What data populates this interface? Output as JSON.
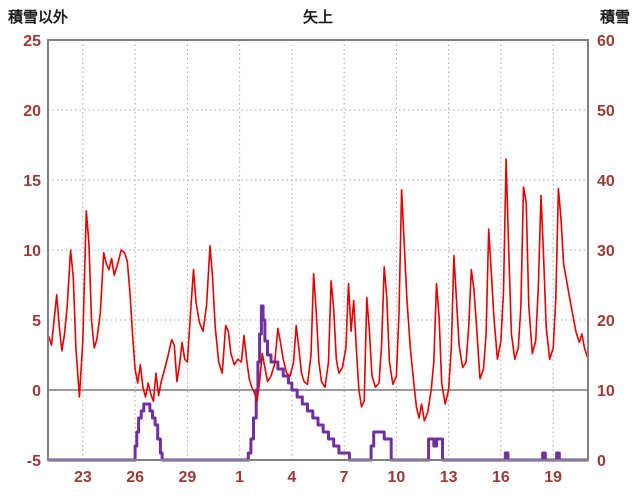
{
  "chart_data": {
    "type": "line",
    "title": "矢上",
    "grid": true,
    "legend": "none",
    "colors": {
      "red_series": "#e60000",
      "purple_series": "#7030a0",
      "tick_label": "#9c3a38",
      "grid_line": "#a6a6a6",
      "border": "#808080",
      "zero_line": "#7a7a7a",
      "title_text": "#1a1a1a"
    },
    "left_axis": {
      "title": "積雪以外",
      "min": -5,
      "max": 25,
      "ticks": [
        25,
        20,
        15,
        10,
        5,
        0,
        -5
      ]
    },
    "right_axis": {
      "title": "積雪",
      "min": 0,
      "max": 60,
      "ticks": [
        60,
        50,
        40,
        30,
        20,
        10,
        0
      ]
    },
    "x_axis": {
      "domain": [
        21,
        52
      ],
      "tick_days": [
        23,
        26,
        29,
        32,
        35,
        38,
        41,
        44,
        47,
        50
      ],
      "tick_labels": [
        "23",
        "26",
        "29",
        "1",
        "4",
        "7",
        "10",
        "13",
        "16",
        "19"
      ]
    },
    "series": [
      {
        "id": "purple-line",
        "axis": "right",
        "color_key": "purple_series",
        "width": 3,
        "interpolation": "step",
        "points": [
          [
            21.05,
            0
          ],
          [
            25.9,
            0
          ],
          [
            26.0,
            2
          ],
          [
            26.1,
            4
          ],
          [
            26.2,
            6
          ],
          [
            26.35,
            7
          ],
          [
            26.5,
            8
          ],
          [
            26.7,
            8
          ],
          [
            26.85,
            7
          ],
          [
            27.0,
            6
          ],
          [
            27.15,
            5
          ],
          [
            27.3,
            3
          ],
          [
            27.45,
            1
          ],
          [
            27.55,
            0
          ],
          [
            32.3,
            0
          ],
          [
            32.5,
            1
          ],
          [
            32.65,
            3
          ],
          [
            32.8,
            6
          ],
          [
            32.95,
            10
          ],
          [
            33.05,
            14
          ],
          [
            33.15,
            18
          ],
          [
            33.25,
            22
          ],
          [
            33.35,
            20
          ],
          [
            33.45,
            17
          ],
          [
            33.6,
            15
          ],
          [
            33.8,
            14
          ],
          [
            34.0,
            14
          ],
          [
            34.2,
            13
          ],
          [
            34.5,
            12
          ],
          [
            34.8,
            11
          ],
          [
            35.0,
            10
          ],
          [
            35.3,
            9
          ],
          [
            35.6,
            8
          ],
          [
            35.9,
            7
          ],
          [
            36.2,
            6
          ],
          [
            36.5,
            5
          ],
          [
            36.8,
            4
          ],
          [
            37.1,
            3
          ],
          [
            37.4,
            2
          ],
          [
            37.7,
            1
          ],
          [
            38.0,
            1
          ],
          [
            38.3,
            0
          ],
          [
            39.4,
            0
          ],
          [
            39.55,
            2
          ],
          [
            39.7,
            4
          ],
          [
            40.1,
            4
          ],
          [
            40.3,
            3
          ],
          [
            40.5,
            3
          ],
          [
            40.7,
            0
          ],
          [
            42.7,
            0
          ],
          [
            42.85,
            3
          ],
          [
            43.05,
            3
          ],
          [
            43.15,
            2
          ],
          [
            43.3,
            3
          ],
          [
            43.55,
            3
          ],
          [
            43.65,
            0
          ],
          [
            47.15,
            0
          ],
          [
            47.25,
            1
          ],
          [
            47.4,
            0
          ],
          [
            49.3,
            0
          ],
          [
            49.4,
            1
          ],
          [
            49.55,
            0
          ],
          [
            50.1,
            0
          ],
          [
            50.2,
            1
          ],
          [
            50.35,
            0
          ],
          [
            51.95,
            0
          ]
        ]
      },
      {
        "id": "red-line",
        "axis": "left",
        "color_key": "red_series",
        "width": 1.6,
        "interpolation": "linear",
        "points": [
          [
            21.05,
            3.8
          ],
          [
            21.2,
            3.2
          ],
          [
            21.35,
            5.0
          ],
          [
            21.5,
            6.8
          ],
          [
            21.65,
            4.5
          ],
          [
            21.8,
            2.8
          ],
          [
            21.95,
            4.0
          ],
          [
            22.1,
            6.0
          ],
          [
            22.3,
            10.0
          ],
          [
            22.45,
            8.0
          ],
          [
            22.6,
            3.0
          ],
          [
            22.8,
            -0.5
          ],
          [
            23.0,
            3.5
          ],
          [
            23.2,
            12.8
          ],
          [
            23.35,
            10.5
          ],
          [
            23.5,
            5.0
          ],
          [
            23.65,
            3.0
          ],
          [
            23.8,
            3.6
          ],
          [
            24.0,
            5.5
          ],
          [
            24.2,
            9.8
          ],
          [
            24.35,
            9.0
          ],
          [
            24.5,
            8.6
          ],
          [
            24.65,
            9.4
          ],
          [
            24.8,
            8.2
          ],
          [
            25.0,
            9.0
          ],
          [
            25.2,
            10.0
          ],
          [
            25.4,
            9.8
          ],
          [
            25.55,
            9.2
          ],
          [
            25.7,
            7.0
          ],
          [
            25.85,
            4.0
          ],
          [
            26.0,
            1.5
          ],
          [
            26.15,
            0.5
          ],
          [
            26.3,
            1.8
          ],
          [
            26.45,
            0.2
          ],
          [
            26.6,
            -0.5
          ],
          [
            26.75,
            0.5
          ],
          [
            26.9,
            -0.3
          ],
          [
            27.05,
            -0.8
          ],
          [
            27.2,
            1.2
          ],
          [
            27.35,
            -0.4
          ],
          [
            27.5,
            0.6
          ],
          [
            27.7,
            1.5
          ],
          [
            27.9,
            2.5
          ],
          [
            28.1,
            3.6
          ],
          [
            28.25,
            3.2
          ],
          [
            28.4,
            0.6
          ],
          [
            28.55,
            1.8
          ],
          [
            28.7,
            3.4
          ],
          [
            28.85,
            2.2
          ],
          [
            29.0,
            2.0
          ],
          [
            29.2,
            5.8
          ],
          [
            29.35,
            8.6
          ],
          [
            29.5,
            6.2
          ],
          [
            29.7,
            4.8
          ],
          [
            29.9,
            4.2
          ],
          [
            30.1,
            6.0
          ],
          [
            30.3,
            10.3
          ],
          [
            30.45,
            8.0
          ],
          [
            30.6,
            4.5
          ],
          [
            30.8,
            2.0
          ],
          [
            31.0,
            1.2
          ],
          [
            31.2,
            4.6
          ],
          [
            31.35,
            4.2
          ],
          [
            31.5,
            2.6
          ],
          [
            31.7,
            1.8
          ],
          [
            31.9,
            2.2
          ],
          [
            32.1,
            2.0
          ],
          [
            32.25,
            3.9
          ],
          [
            32.4,
            2.2
          ],
          [
            32.55,
            0.8
          ],
          [
            32.7,
            0.2
          ],
          [
            32.85,
            -0.2
          ],
          [
            33.0,
            -0.8
          ],
          [
            33.15,
            0.6
          ],
          [
            33.3,
            2.6
          ],
          [
            33.45,
            1.6
          ],
          [
            33.6,
            0.6
          ],
          [
            33.8,
            1.0
          ],
          [
            34.0,
            1.8
          ],
          [
            34.2,
            4.4
          ],
          [
            34.35,
            3.4
          ],
          [
            34.5,
            2.2
          ],
          [
            34.7,
            1.2
          ],
          [
            34.9,
            1.0
          ],
          [
            35.1,
            2.0
          ],
          [
            35.25,
            4.6
          ],
          [
            35.4,
            3.0
          ],
          [
            35.55,
            1.2
          ],
          [
            35.7,
            0.6
          ],
          [
            35.9,
            0.4
          ],
          [
            36.1,
            2.5
          ],
          [
            36.25,
            8.3
          ],
          [
            36.4,
            5.5
          ],
          [
            36.55,
            2.0
          ],
          [
            36.7,
            0.6
          ],
          [
            36.9,
            0.2
          ],
          [
            37.1,
            2.0
          ],
          [
            37.25,
            7.8
          ],
          [
            37.4,
            5.8
          ],
          [
            37.55,
            2.2
          ],
          [
            37.7,
            1.2
          ],
          [
            37.9,
            1.6
          ],
          [
            38.1,
            3.0
          ],
          [
            38.25,
            7.6
          ],
          [
            38.4,
            4.2
          ],
          [
            38.55,
            6.4
          ],
          [
            38.7,
            3.0
          ],
          [
            38.85,
            0.0
          ],
          [
            39.0,
            -1.2
          ],
          [
            39.15,
            -0.8
          ],
          [
            39.3,
            6.6
          ],
          [
            39.45,
            4.2
          ],
          [
            39.6,
            1.0
          ],
          [
            39.8,
            0.2
          ],
          [
            40.0,
            0.5
          ],
          [
            40.15,
            3.2
          ],
          [
            40.3,
            8.8
          ],
          [
            40.45,
            6.6
          ],
          [
            40.6,
            2.0
          ],
          [
            40.8,
            0.4
          ],
          [
            41.0,
            1.0
          ],
          [
            41.15,
            5.5
          ],
          [
            41.3,
            14.3
          ],
          [
            41.45,
            10.5
          ],
          [
            41.6,
            6.6
          ],
          [
            41.8,
            3.0
          ],
          [
            42.0,
            0.5
          ],
          [
            42.15,
            -1.2
          ],
          [
            42.3,
            -2.0
          ],
          [
            42.45,
            -1.0
          ],
          [
            42.6,
            -2.2
          ],
          [
            42.8,
            -1.6
          ],
          [
            43.0,
            0.0
          ],
          [
            43.15,
            2.0
          ],
          [
            43.3,
            7.6
          ],
          [
            43.45,
            5.2
          ],
          [
            43.6,
            0.5
          ],
          [
            43.8,
            -1.0
          ],
          [
            44.0,
            0.0
          ],
          [
            44.15,
            3.0
          ],
          [
            44.3,
            9.6
          ],
          [
            44.45,
            6.4
          ],
          [
            44.6,
            3.2
          ],
          [
            44.8,
            1.6
          ],
          [
            45.0,
            2.0
          ],
          [
            45.15,
            4.5
          ],
          [
            45.3,
            8.6
          ],
          [
            45.45,
            7.2
          ],
          [
            45.6,
            4.6
          ],
          [
            45.8,
            0.8
          ],
          [
            46.0,
            1.5
          ],
          [
            46.15,
            4.0
          ],
          [
            46.3,
            11.5
          ],
          [
            46.45,
            8.4
          ],
          [
            46.6,
            5.2
          ],
          [
            46.8,
            2.2
          ],
          [
            47.0,
            3.5
          ],
          [
            47.15,
            7.0
          ],
          [
            47.3,
            16.5
          ],
          [
            47.45,
            10.0
          ],
          [
            47.6,
            4.0
          ],
          [
            47.8,
            2.2
          ],
          [
            48.0,
            3.0
          ],
          [
            48.15,
            6.0
          ],
          [
            48.3,
            14.5
          ],
          [
            48.45,
            13.4
          ],
          [
            48.6,
            6.0
          ],
          [
            48.8,
            2.6
          ],
          [
            49.0,
            3.5
          ],
          [
            49.15,
            7.5
          ],
          [
            49.3,
            13.9
          ],
          [
            49.45,
            9.5
          ],
          [
            49.6,
            4.5
          ],
          [
            49.8,
            2.2
          ],
          [
            50.0,
            3.0
          ],
          [
            50.15,
            6.5
          ],
          [
            50.3,
            14.4
          ],
          [
            50.45,
            12.2
          ],
          [
            50.6,
            9.0
          ],
          [
            50.8,
            7.6
          ],
          [
            51.0,
            6.2
          ],
          [
            51.15,
            5.2
          ],
          [
            51.3,
            4.2
          ],
          [
            51.5,
            3.4
          ],
          [
            51.65,
            4.0
          ],
          [
            51.8,
            3.0
          ],
          [
            51.95,
            2.4
          ]
        ]
      }
    ]
  }
}
